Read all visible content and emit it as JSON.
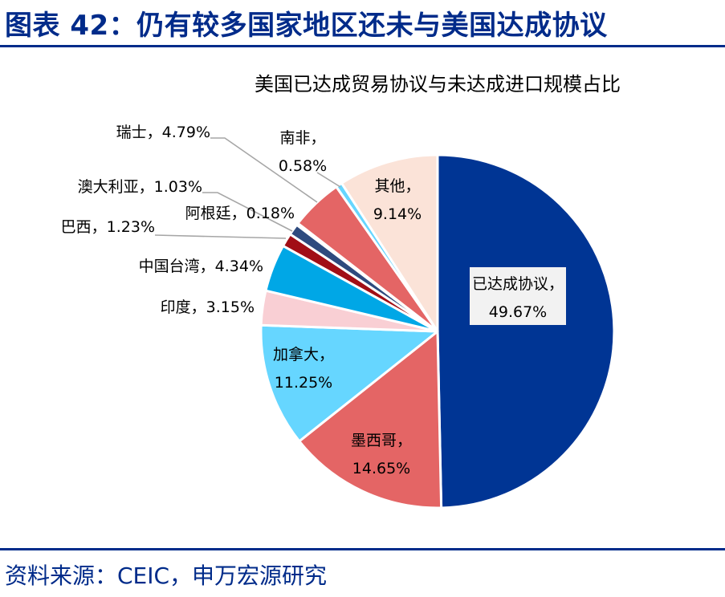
{
  "header": {
    "title": "图表 42：仍有较多国家地区还未与美国达成协议"
  },
  "footer": {
    "source": "资料来源：CEIC，申万宏源研究"
  },
  "colors": {
    "brand": "#002b8a"
  },
  "chart_data": {
    "type": "pie",
    "title": "美国已达成贸易协议与未达成进口规模占比",
    "slices": [
      {
        "label": "已达成协议",
        "value": 49.67,
        "value_text": "49.67%",
        "color": "#003594"
      },
      {
        "label": "墨西哥",
        "value": 14.65,
        "value_text": "14.65%",
        "color": "#e46565"
      },
      {
        "label": "加拿大",
        "value": 11.25,
        "value_text": "11.25%",
        "color": "#66d6ff"
      },
      {
        "label": "印度",
        "value": 3.15,
        "value_text": "3.15%",
        "color": "#f9cfd4"
      },
      {
        "label": "中国台湾",
        "value": 4.34,
        "value_text": "4.34%",
        "color": "#00a7e6"
      },
      {
        "label": "巴西",
        "value": 1.23,
        "value_text": "1.23%",
        "color": "#a10e16"
      },
      {
        "label": "澳大利亚",
        "value": 1.03,
        "value_text": "1.03%",
        "color": "#2e4a7e"
      },
      {
        "label": "阿根廷",
        "value": 0.18,
        "value_text": "0.18%",
        "color": "#f4b6b6"
      },
      {
        "label": "瑞士",
        "value": 4.79,
        "value_text": "4.79%",
        "color": "#e46565"
      },
      {
        "label": "南非",
        "value": 0.58,
        "value_text": "0.58%",
        "color": "#66d6ff"
      },
      {
        "label": "其他",
        "value": 9.14,
        "value_text": "9.14%",
        "color": "#fbe3d8"
      }
    ]
  }
}
